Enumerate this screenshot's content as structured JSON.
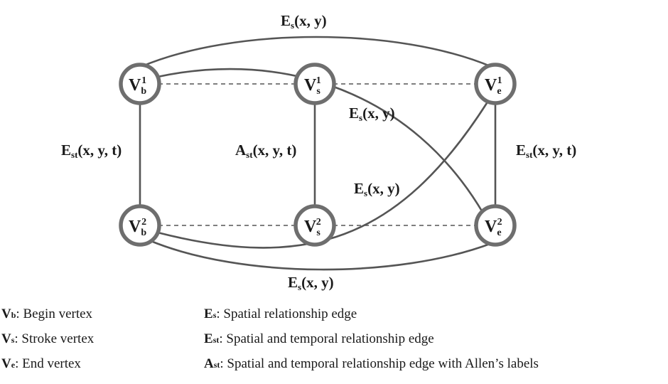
{
  "nodes": {
    "vb1": {
      "main": "V",
      "sub": "b",
      "sup": "1"
    },
    "vs1": {
      "main": "V",
      "sub": "s",
      "sup": "1"
    },
    "ve1": {
      "main": "V",
      "sub": "e",
      "sup": "1"
    },
    "vb2": {
      "main": "V",
      "sub": "b",
      "sup": "2"
    },
    "vs2": {
      "main": "V",
      "sub": "s",
      "sup": "2"
    },
    "ve2": {
      "main": "V",
      "sub": "e",
      "sup": "2"
    }
  },
  "edge_labels": {
    "es_top": {
      "main": "E",
      "sub": "s",
      "rest": "(x, y)"
    },
    "es_cross1": {
      "main": "E",
      "sub": "s",
      "rest": "(x, y)"
    },
    "es_cross2": {
      "main": "E",
      "sub": "s",
      "rest": "(x, y)"
    },
    "es_bottom": {
      "main": "E",
      "sub": "s",
      "rest": "(x, y)"
    },
    "est_left": {
      "main": "E",
      "sub": "st",
      "rest": "(x, y, t)"
    },
    "ast_mid": {
      "main": "A",
      "sub": "st",
      "rest": "(x, y, t)"
    },
    "est_right": {
      "main": "E",
      "sub": "st",
      "rest": "(x, y, t)"
    }
  },
  "legend": [
    {
      "sym": "V",
      "sub": "b",
      "text": ": Begin vertex"
    },
    {
      "sym": "V",
      "sub": "s",
      "text": ": Stroke vertex"
    },
    {
      "sym": "V",
      "sub": "e",
      "text": ": End vertex"
    },
    {
      "sym": "E",
      "sub": "s",
      "text": ":  Spatial relationship edge"
    },
    {
      "sym": "E",
      "sub": "st",
      "text": ": Spatial and temporal relationship edge"
    },
    {
      "sym": "A",
      "sub": "st",
      "text": ": Spatial and temporal relationship edge with Allen’s labels"
    }
  ]
}
